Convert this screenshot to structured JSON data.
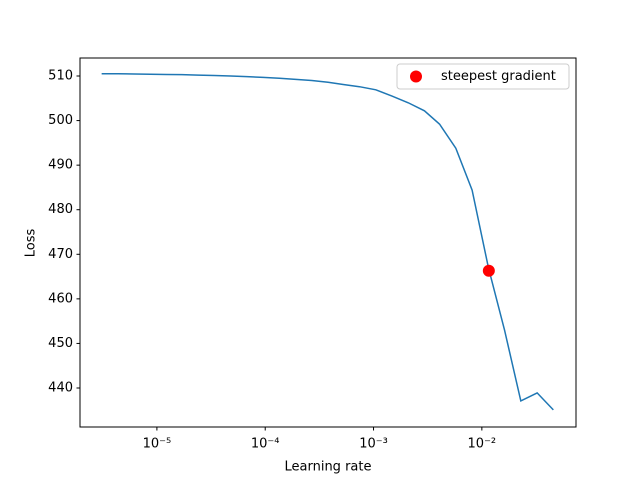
{
  "chart_data": {
    "type": "line",
    "xlabel": "Learning rate",
    "ylabel": "Loss",
    "xscale": "log",
    "xlim": [
      1.95e-06,
      0.074
    ],
    "ylim": [
      431.25,
      514.04
    ],
    "xticks": [
      {
        "value": 1e-05,
        "label": "10⁻⁵"
      },
      {
        "value": 0.0001,
        "label": "10⁻⁴"
      },
      {
        "value": 0.001,
        "label": "10⁻³"
      },
      {
        "value": 0.01,
        "label": "10⁻²"
      }
    ],
    "yticks": [
      440,
      450,
      460,
      470,
      480,
      490,
      500,
      510
    ],
    "legend": "upper right",
    "series": [
      {
        "color": "#1f77b4",
        "x": [
          3.09e-06,
          4.37e-06,
          6.17e-06,
          8.71e-06,
          1.23e-05,
          1.7e-05,
          2.4e-05,
          3.39e-05,
          4.79e-05,
          6.76e-05,
          9.55e-05,
          0.000135,
          0.000191,
          0.000269,
          0.00038,
          0.000525,
          0.000741,
          0.00105,
          0.00148,
          0.00209,
          0.00295,
          0.00407,
          0.00575,
          0.00813,
          0.0115,
          0.0162,
          0.0229,
          0.0324,
          0.0457
        ],
        "values": [
          510.5,
          510.5,
          510.45,
          510.4,
          510.35,
          510.3,
          510.2,
          510.1,
          510.0,
          509.85,
          509.7,
          509.5,
          509.25,
          509.0,
          508.6,
          508.1,
          507.6,
          506.9,
          505.5,
          504.0,
          502.2,
          499.2,
          493.8,
          484.4,
          467.0,
          453.0,
          437.1,
          438.9,
          435.1
        ]
      },
      {
        "name": "steepest gradient",
        "type": "scatter",
        "color": "#ff0000",
        "x": [
          0.0116
        ],
        "values": [
          466.3
        ]
      }
    ]
  }
}
